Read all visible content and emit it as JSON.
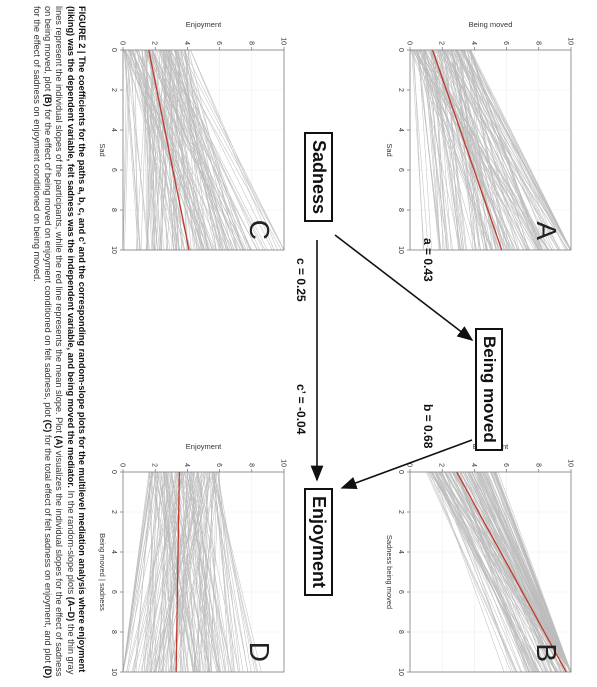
{
  "figure": {
    "caption_label": "FIGURE 2 |",
    "caption_bold": "The coefficients for the paths a, b, c, and c’ and the corresponding random-slope plots for the multilevel mediation analysis where enjoyment (liking) was the dependent variable, felt sadness was the independent variable, and being moved the mediator.",
    "caption_rest_1": "In the random-slope plots",
    "caption_panels_ad": "(A–D)",
    "caption_rest_2": "the thin gray lines represent the individual slopes of the participants, while the red line represents the mean slope. Plot",
    "caption_A": "(A)",
    "caption_rest_3": "visualizes the individual slopes for the effect of sadness on being moved, plot",
    "caption_B": "(B)",
    "caption_rest_4": "for the effect of being moved on enjoyment conditioned on felt sadness, plot",
    "caption_C": "(C)",
    "caption_rest_5": "for the total effect of felt sadness on enjoyment, and plot",
    "caption_D": "(D)",
    "caption_rest_6": "for the effect of sadness on enjoyment conditioned on being moved."
  },
  "mediation": {
    "sadness": "Sadness",
    "being_moved": "Being moved",
    "enjoyment": "Enjoyment",
    "path_a": "a = 0.43",
    "path_b": "b = 0.68",
    "path_c": "c = 0.25",
    "path_c_prime": "c’ = -0.04"
  },
  "colors": {
    "individual_lines": "#bdbdbd",
    "mean_line": "#c0392b",
    "frame": "#7f7f7f"
  },
  "chart_data": [
    {
      "panel": "A",
      "type": "line",
      "xlabel": "Sad",
      "ylabel": "Being moved",
      "xlim": [
        0,
        10
      ],
      "ylim": [
        0,
        10
      ],
      "x_ticks": [
        "0",
        "2",
        "4",
        "6",
        "8",
        "10"
      ],
      "y_ticks": [
        "0",
        "2",
        "4",
        "6",
        "8",
        "10"
      ],
      "mean_line": {
        "x": [
          0,
          10
        ],
        "y": [
          1.4,
          5.7
        ]
      },
      "individual_lines": {
        "count": 150,
        "intercept_range": [
          0.0,
          3.8
        ],
        "slope_range": [
          0.05,
          0.85
        ]
      },
      "grid": true
    },
    {
      "panel": "B",
      "type": "line",
      "xlabel": "Sadness being moved",
      "ylabel": "Enjoyment",
      "xlim": [
        0,
        10
      ],
      "ylim": [
        0,
        10
      ],
      "x_ticks": [
        "0",
        "2",
        "4",
        "6",
        "8",
        "10"
      ],
      "y_ticks": [
        "0",
        "2",
        "4",
        "6",
        "8",
        "10"
      ],
      "mean_line": {
        "x": [
          0,
          10
        ],
        "y": [
          2.9,
          9.7
        ]
      },
      "individual_lines": {
        "count": 150,
        "intercept_range": [
          1.0,
          5.5
        ],
        "slope_range": [
          0.4,
          0.95
        ]
      },
      "grid": true
    },
    {
      "panel": "C",
      "type": "line",
      "xlabel": "Sad",
      "ylabel": "Enjoyment",
      "xlim": [
        0,
        10
      ],
      "ylim": [
        0,
        10
      ],
      "x_ticks": [
        "0",
        "2",
        "4",
        "6",
        "8",
        "10"
      ],
      "y_ticks": [
        "0",
        "2",
        "4",
        "6",
        "8",
        "10"
      ],
      "mean_line": {
        "x": [
          0,
          10
        ],
        "y": [
          1.6,
          4.1
        ]
      },
      "individual_lines": {
        "count": 150,
        "intercept_range": [
          0.0,
          4.2
        ],
        "slope_range": [
          -0.15,
          0.7
        ]
      },
      "grid": true
    },
    {
      "panel": "D",
      "type": "line",
      "xlabel": "Being moved | sadness",
      "ylabel": "Enjoyment",
      "xlim": [
        0,
        10
      ],
      "ylim": [
        0,
        10
      ],
      "x_ticks": [
        "0",
        "2",
        "4",
        "6",
        "8",
        "10"
      ],
      "y_ticks": [
        "0",
        "2",
        "4",
        "6",
        "8",
        "10"
      ],
      "mean_line": {
        "x": [
          0,
          10
        ],
        "y": [
          3.5,
          3.3
        ]
      },
      "individual_lines": {
        "count": 150,
        "intercept_range": [
          1.5,
          6.0
        ],
        "slope_range": [
          -0.35,
          0.3
        ]
      },
      "grid": true
    }
  ]
}
